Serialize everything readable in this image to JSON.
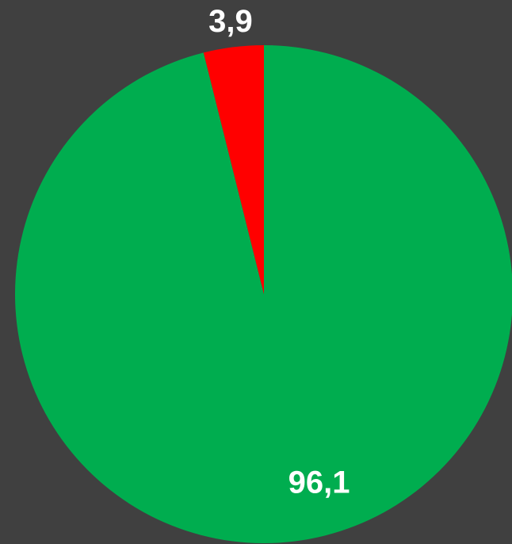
{
  "chart_data": {
    "type": "pie",
    "values": [
      96.1,
      3.9
    ],
    "value_labels": [
      "96,1",
      "3,9"
    ],
    "colors": [
      "#00ad4f",
      "#ff0000"
    ]
  }
}
